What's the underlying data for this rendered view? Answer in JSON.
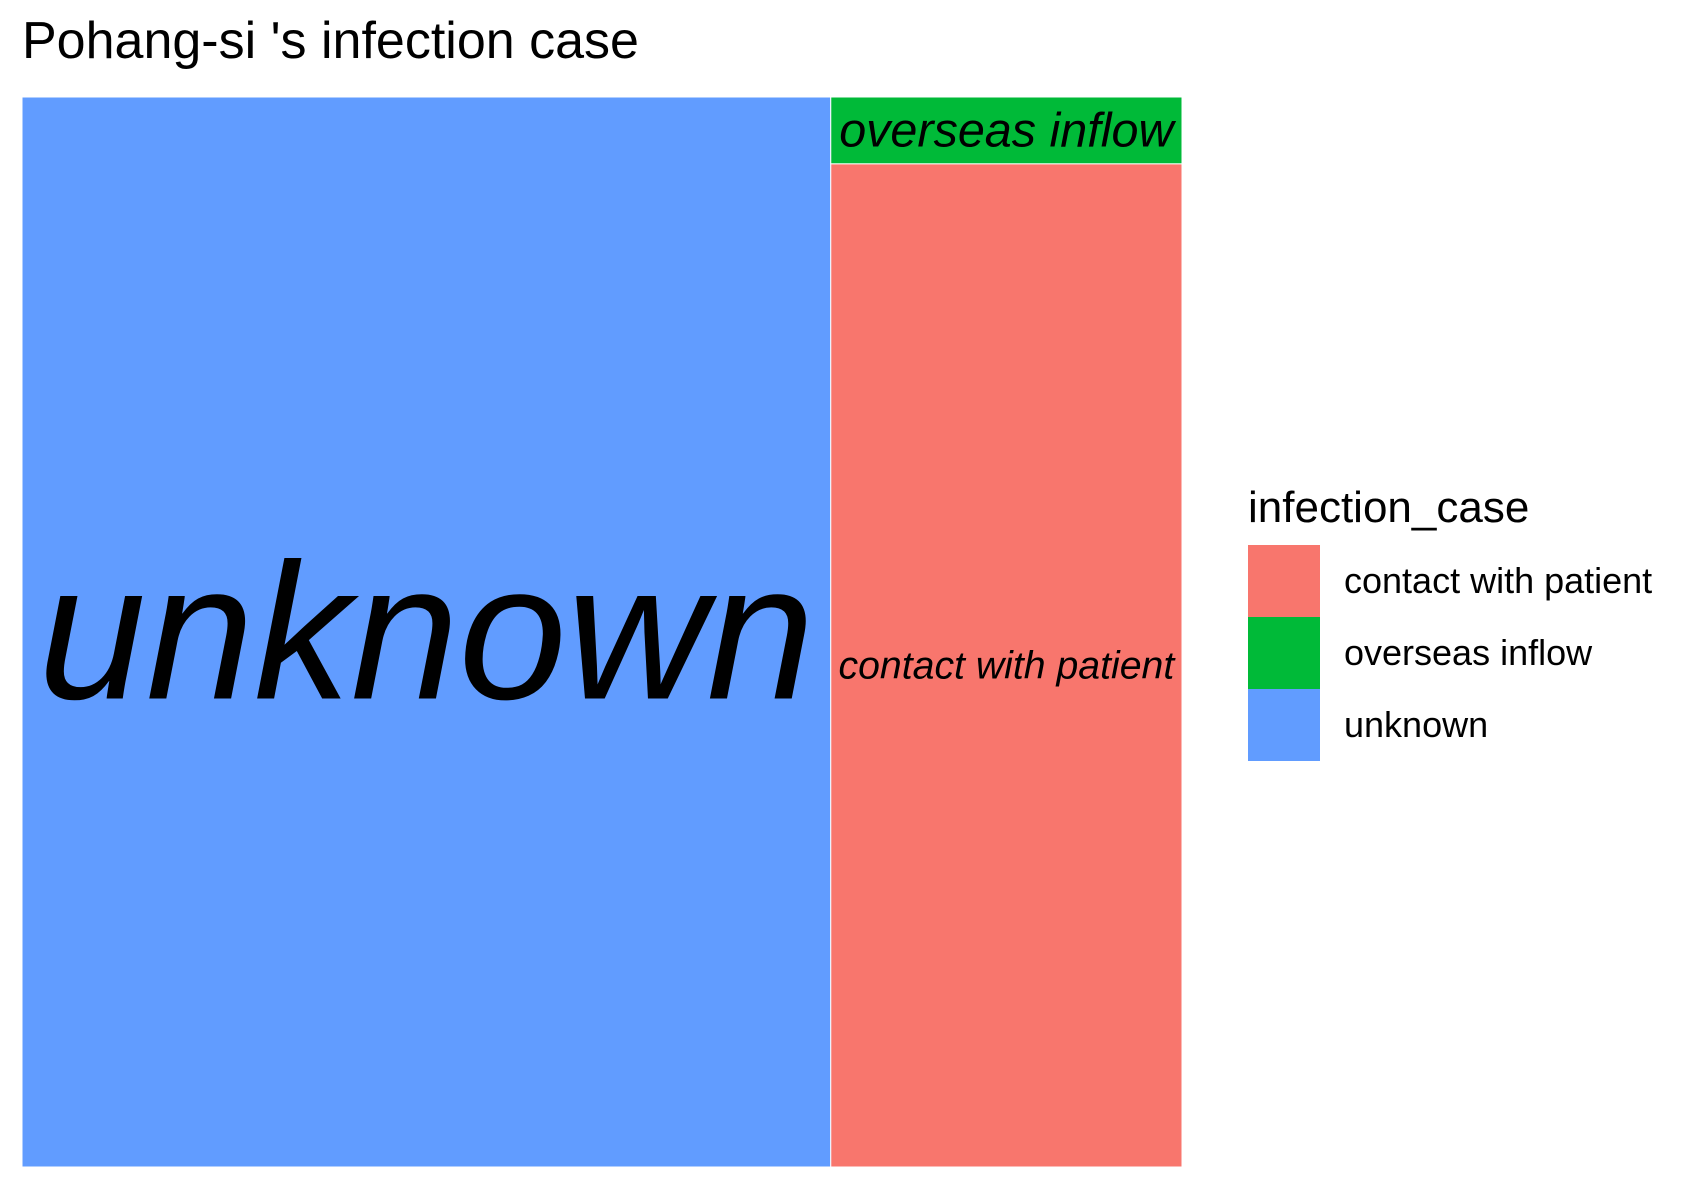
{
  "chart_data": {
    "type": "treemap",
    "title": "Pohang-si 's infection case",
    "legend": {
      "title": "infection_case",
      "placement": "right",
      "entries": [
        "contact with patient",
        "overseas inflow",
        "unknown"
      ]
    },
    "items": [
      {
        "label": "unknown",
        "value": 70,
        "color": "#619CFF"
      },
      {
        "label": "contact with patient",
        "value": 28.5,
        "color": "#F8766D"
      },
      {
        "label": "overseas inflow",
        "value": 1.9,
        "color": "#00BA38"
      }
    ]
  },
  "colors": {
    "contact with patient": "#F8766D",
    "overseas inflow": "#00BA38",
    "unknown": "#619CFF"
  }
}
